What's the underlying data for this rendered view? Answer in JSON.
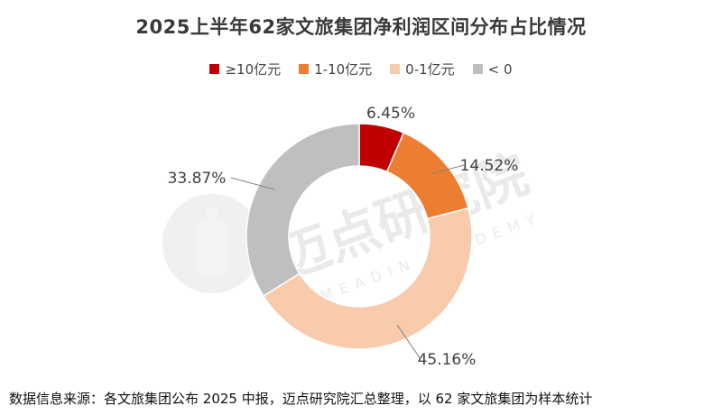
{
  "chart_data": {
    "type": "pie",
    "title": "2025上半年62家文旅集团净利润区间分布占比情况",
    "categories": [
      "≥10亿元",
      "1-10亿元",
      "0-1亿元",
      "< 0"
    ],
    "values": [
      6.45,
      14.52,
      45.16,
      33.87
    ],
    "value_labels": [
      "6.45%",
      "14.52%",
      "45.16%",
      "33.87%"
    ],
    "colors": [
      "#c00000",
      "#ed7d31",
      "#f8cbad",
      "#bfbfbf"
    ],
    "donut": true,
    "legend_position": "top"
  },
  "watermark": {
    "text": "迈点研究院",
    "subtext": "MEADIN ACADEMY"
  },
  "source_note": "数据信息来源：各文旅集团公布 2025 中报，迈点研究院汇总整理，以 62 家文旅集团为样本统计"
}
